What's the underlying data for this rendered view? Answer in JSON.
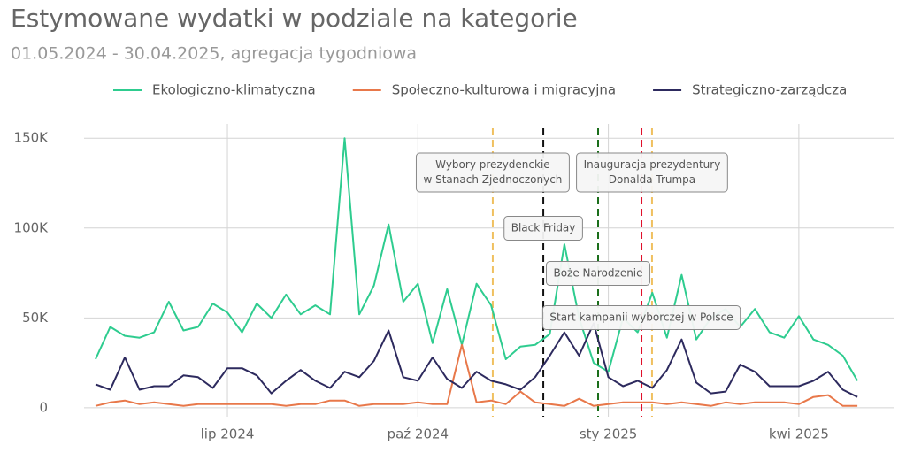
{
  "chart_data": {
    "type": "line",
    "title": "Estymowane wydatki w podziale na kategorie",
    "subtitle": "01.05.2024 - 30.04.2025, agregacja tygodniowa",
    "categories": [
      null,
      null,
      null,
      null,
      null,
      null,
      null,
      null,
      null,
      "lip 2024",
      null,
      null,
      null,
      null,
      null,
      null,
      null,
      null,
      null,
      null,
      null,
      null,
      "paź 2024",
      null,
      null,
      null,
      null,
      null,
      null,
      null,
      null,
      null,
      null,
      null,
      null,
      "sty 2025",
      null,
      null,
      null,
      null,
      null,
      null,
      null,
      null,
      null,
      null,
      null,
      null,
      "kwi 2025",
      null,
      null,
      null,
      null
    ],
    "series": [
      {
        "name": "Ekologiczno-klimatyczna",
        "color": "#2ecc8f",
        "values": [
          27000,
          45000,
          40000,
          39000,
          42000,
          59000,
          43000,
          45000,
          58000,
          53000,
          42000,
          58000,
          50000,
          63000,
          52000,
          57000,
          52000,
          150000,
          52000,
          68000,
          102000,
          59000,
          69000,
          36000,
          66000,
          35000,
          69000,
          57000,
          27000,
          34000,
          35000,
          41000,
          91000,
          50000,
          25000,
          20000,
          50000,
          42000,
          64000,
          39000,
          74000,
          38000,
          50000,
          55000,
          45000,
          55000,
          42000,
          39000,
          51000,
          38000,
          35000,
          29000,
          15000
        ]
      },
      {
        "name": "Społeczno-kulturowa i migracyjna",
        "color": "#e8784a",
        "values": [
          1000,
          3000,
          4000,
          2000,
          3000,
          2000,
          1000,
          2000,
          2000,
          2000,
          2000,
          2000,
          2000,
          1000,
          2000,
          2000,
          4000,
          4000,
          1000,
          2000,
          2000,
          2000,
          3000,
          2000,
          2000,
          35000,
          3000,
          4000,
          2000,
          9000,
          3000,
          2000,
          1000,
          5000,
          1000,
          2000,
          3000,
          3000,
          3000,
          2000,
          3000,
          2000,
          1000,
          3000,
          2000,
          3000,
          3000,
          3000,
          2000,
          6000,
          7000,
          1000,
          1000
        ]
      },
      {
        "name": "Strategiczno-zarządcza",
        "color": "#2d2a5e",
        "values": [
          13000,
          10000,
          28000,
          10000,
          12000,
          12000,
          18000,
          17000,
          11000,
          22000,
          22000,
          18000,
          8000,
          15000,
          21000,
          15000,
          11000,
          20000,
          17000,
          26000,
          43000,
          17000,
          15000,
          28000,
          16000,
          11000,
          20000,
          15000,
          13000,
          10000,
          17000,
          29000,
          42000,
          29000,
          47000,
          17000,
          12000,
          15000,
          11000,
          21000,
          38000,
          14000,
          8000,
          9000,
          24000,
          20000,
          12000,
          12000,
          12000,
          15000,
          20000,
          10000,
          6000
        ]
      }
    ],
    "ylim": [
      -5000,
      158000
    ],
    "yticks": [
      0,
      {
        "value": 50000,
        "label": "50K"
      },
      {
        "value": 100000,
        "label": "100K"
      },
      {
        "value": 150000,
        "label": "150K"
      }
    ],
    "grid": true,
    "legend": "top",
    "events": [
      {
        "label": [
          "Wybory prezydenckie",
          "w Stanach Zjednoczonych"
        ],
        "x": 27.11,
        "color": "#f0c060"
      },
      {
        "label": [
          "Black Friday"
        ],
        "x": 30.56,
        "color": "#111111"
      },
      {
        "label": [
          "Boże Narodzenie"
        ],
        "x": 34.3,
        "color": "#1a6e1a"
      },
      {
        "label": [
          "Start kampanii wyborczej w Polsce"
        ],
        "x": 37.26,
        "color": "#e0102a"
      },
      {
        "label": [
          "Inauguracja prezydentury",
          "Donalda Trumpa"
        ],
        "x": 37.98,
        "color": "#f0c060"
      }
    ]
  }
}
